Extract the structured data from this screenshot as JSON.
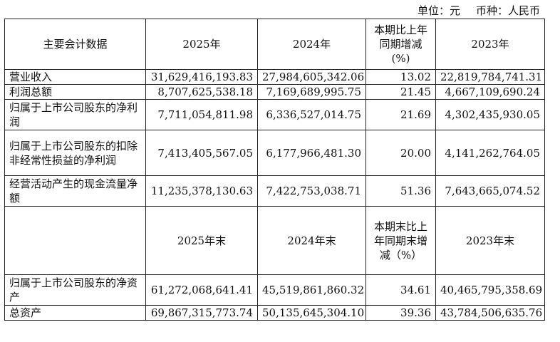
{
  "unit": {
    "unit_label": "单位：元",
    "currency_label": "币种：人民币"
  },
  "header1": {
    "indicator": "主要会计数据",
    "y2025": "2025年",
    "y2024": "2024年",
    "change": "本期比上年同期增减(%)",
    "y2023": "2023年"
  },
  "rows1": [
    {
      "label": "营业收入",
      "v2025": "31,629,416,193.83",
      "v2024": "27,984,605,342.06",
      "change": "13.02",
      "v2023": "22,819,784,741.31"
    },
    {
      "label": "利润总额",
      "v2025": "8,707,625,538.18",
      "v2024": "7,169,689,995.75",
      "change": "21.45",
      "v2023": "4,667,109,690.24"
    },
    {
      "label": "归属于上市公司股东的净利润",
      "v2025": "7,711,054,811.98",
      "v2024": "6,336,527,014.75",
      "change": "21.69",
      "v2023": "4,302,435,930.05"
    },
    {
      "label": "归属于上市公司股东的扣除非经常性损益的净利润",
      "v2025": "7,413,405,567.05",
      "v2024": "6,177,966,481.30",
      "change": "20.00",
      "v2023": "4,141,262,764.05"
    },
    {
      "label": "经营活动产生的现金流量净额",
      "v2025": "11,235,378,130.63",
      "v2024": "7,422,753,038.71",
      "change": "51.36",
      "v2023": "7,643,665,074.52"
    }
  ],
  "header2": {
    "indicator": "",
    "y2025": "2025年末",
    "y2024": "2024年末",
    "change": "本期末比上年同期末增减（%）",
    "y2023": "2023年末"
  },
  "rows2": [
    {
      "label": "归属于上市公司股东的净资产",
      "v2025": "61,272,068,641.41",
      "v2024": "45,519,861,860.32",
      "change": "34.61",
      "v2023": "40,465,795,358.69"
    },
    {
      "label": "总资产",
      "v2025": "69,867,315,773.74",
      "v2024": "50,135,645,304.10",
      "change": "39.36",
      "v2023": "43,784,506,635.76"
    }
  ]
}
